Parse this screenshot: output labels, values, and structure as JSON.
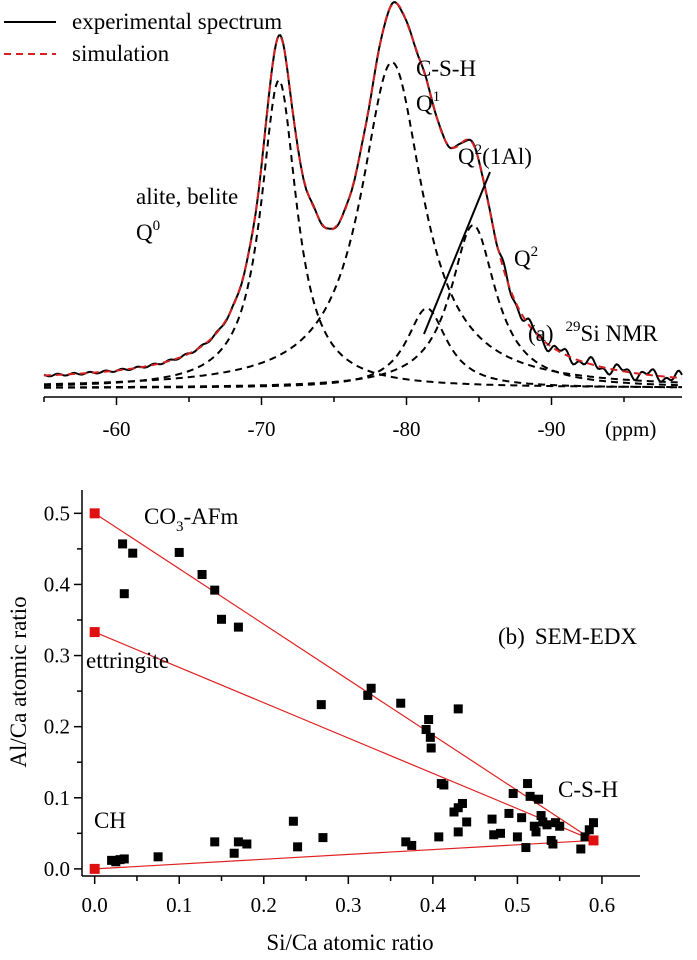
{
  "chart_data": [
    {
      "type": "line",
      "panel_label": "(a)",
      "panel_title_sup": "29",
      "panel_title": "Si NMR",
      "xlabel": "(ppm)",
      "x_ticks": [
        "-60",
        "-70",
        "-80",
        "-90"
      ],
      "xlim": [
        -55,
        -99
      ],
      "axis_reversed": true,
      "legend": {
        "placement": "top-left",
        "entries": [
          {
            "name": "experimental spectrum",
            "style": "solid",
            "color": "#000000"
          },
          {
            "name": "simulation",
            "style": "dashed",
            "color": "#d42020"
          }
        ]
      },
      "peak_labels": {
        "q0_line1": "alite, belite",
        "q0_main": "Q",
        "q0_sup": "0",
        "q1_line1": "C-S-H",
        "q1_main": "Q",
        "q1_sup": "1",
        "q21al_main": "Q",
        "q21al_sup": "2",
        "q21al_rest": "(1Al)",
        "q2_main": "Q",
        "q2_sup": "2"
      },
      "components": [
        {
          "center": -71.2,
          "height": 0.85,
          "width": 1.5
        },
        {
          "center": -79.0,
          "height": 0.9,
          "width": 2.6
        },
        {
          "center": -81.4,
          "height": 0.22,
          "width": 1.7
        },
        {
          "center": -84.6,
          "height": 0.45,
          "width": 1.9
        }
      ],
      "baseline": 0.0,
      "experimental_extra": [
        {
          "center": -73.6,
          "height": 0.06,
          "width": 1.0
        }
      ]
    },
    {
      "type": "scatter",
      "panel_label": "(b)",
      "panel_title": "SEM-EDX",
      "xlabel": "Si/Ca atomic ratio",
      "ylabel": "Al/Ca atomic ratio",
      "xlim": [
        -0.015,
        0.645
      ],
      "ylim": [
        -0.01,
        0.53
      ],
      "x_ticks": [
        "0.0",
        "0.1",
        "0.2",
        "0.3",
        "0.4",
        "0.5",
        "0.6"
      ],
      "y_ticks": [
        "0.0",
        "0.1",
        "0.2",
        "0.3",
        "0.4",
        "0.5"
      ],
      "phase_labels": {
        "afm_main": "CO",
        "afm_sub": "3",
        "afm_rest": "-AFm",
        "ettringite": "ettringite",
        "csh": "C-S-H",
        "ch": "CH"
      },
      "reference_points": [
        {
          "name": "CO3-AFm",
          "x": 0.0,
          "y": 0.5
        },
        {
          "name": "ettringite",
          "x": 0.0,
          "y": 0.333
        },
        {
          "name": "C-S-H",
          "x": 0.59,
          "y": 0.04
        },
        {
          "name": "CH",
          "x": 0.0,
          "y": 0.0
        }
      ],
      "reference_lines": [
        {
          "from": [
            0.0,
            0.5
          ],
          "to": [
            0.59,
            0.04
          ]
        },
        {
          "from": [
            0.0,
            0.333
          ],
          "to": [
            0.59,
            0.04
          ]
        },
        {
          "from": [
            0.0,
            0.0
          ],
          "to": [
            0.59,
            0.04
          ]
        }
      ],
      "points": [
        [
          0.033,
          0.457
        ],
        [
          0.045,
          0.444
        ],
        [
          0.035,
          0.387
        ],
        [
          0.1,
          0.445
        ],
        [
          0.127,
          0.414
        ],
        [
          0.142,
          0.392
        ],
        [
          0.15,
          0.351
        ],
        [
          0.17,
          0.34
        ],
        [
          0.268,
          0.231
        ],
        [
          0.323,
          0.244
        ],
        [
          0.327,
          0.254
        ],
        [
          0.362,
          0.233
        ],
        [
          0.392,
          0.196
        ],
        [
          0.395,
          0.21
        ],
        [
          0.397,
          0.185
        ],
        [
          0.398,
          0.17
        ],
        [
          0.41,
          0.12
        ],
        [
          0.413,
          0.118
        ],
        [
          0.43,
          0.225
        ],
        [
          0.425,
          0.08
        ],
        [
          0.43,
          0.086
        ],
        [
          0.435,
          0.092
        ],
        [
          0.44,
          0.066
        ],
        [
          0.43,
          0.052
        ],
        [
          0.407,
          0.045
        ],
        [
          0.368,
          0.038
        ],
        [
          0.375,
          0.033
        ],
        [
          0.47,
          0.07
        ],
        [
          0.472,
          0.048
        ],
        [
          0.48,
          0.05
        ],
        [
          0.49,
          0.078
        ],
        [
          0.495,
          0.106
        ],
        [
          0.5,
          0.045
        ],
        [
          0.505,
          0.072
        ],
        [
          0.51,
          0.03
        ],
        [
          0.512,
          0.12
        ],
        [
          0.515,
          0.102
        ],
        [
          0.52,
          0.06
        ],
        [
          0.522,
          0.052
        ],
        [
          0.525,
          0.098
        ],
        [
          0.528,
          0.075
        ],
        [
          0.53,
          0.066
        ],
        [
          0.535,
          0.062
        ],
        [
          0.54,
          0.04
        ],
        [
          0.542,
          0.035
        ],
        [
          0.545,
          0.065
        ],
        [
          0.55,
          0.06
        ],
        [
          0.575,
          0.028
        ],
        [
          0.58,
          0.045
        ],
        [
          0.585,
          0.055
        ],
        [
          0.59,
          0.065
        ],
        [
          0.02,
          0.012
        ],
        [
          0.025,
          0.01
        ],
        [
          0.03,
          0.013
        ],
        [
          0.035,
          0.014
        ],
        [
          0.075,
          0.017
        ],
        [
          0.142,
          0.038
        ],
        [
          0.165,
          0.022
        ],
        [
          0.17,
          0.038
        ],
        [
          0.18,
          0.035
        ],
        [
          0.235,
          0.067
        ],
        [
          0.24,
          0.031
        ],
        [
          0.27,
          0.044
        ]
      ]
    }
  ]
}
